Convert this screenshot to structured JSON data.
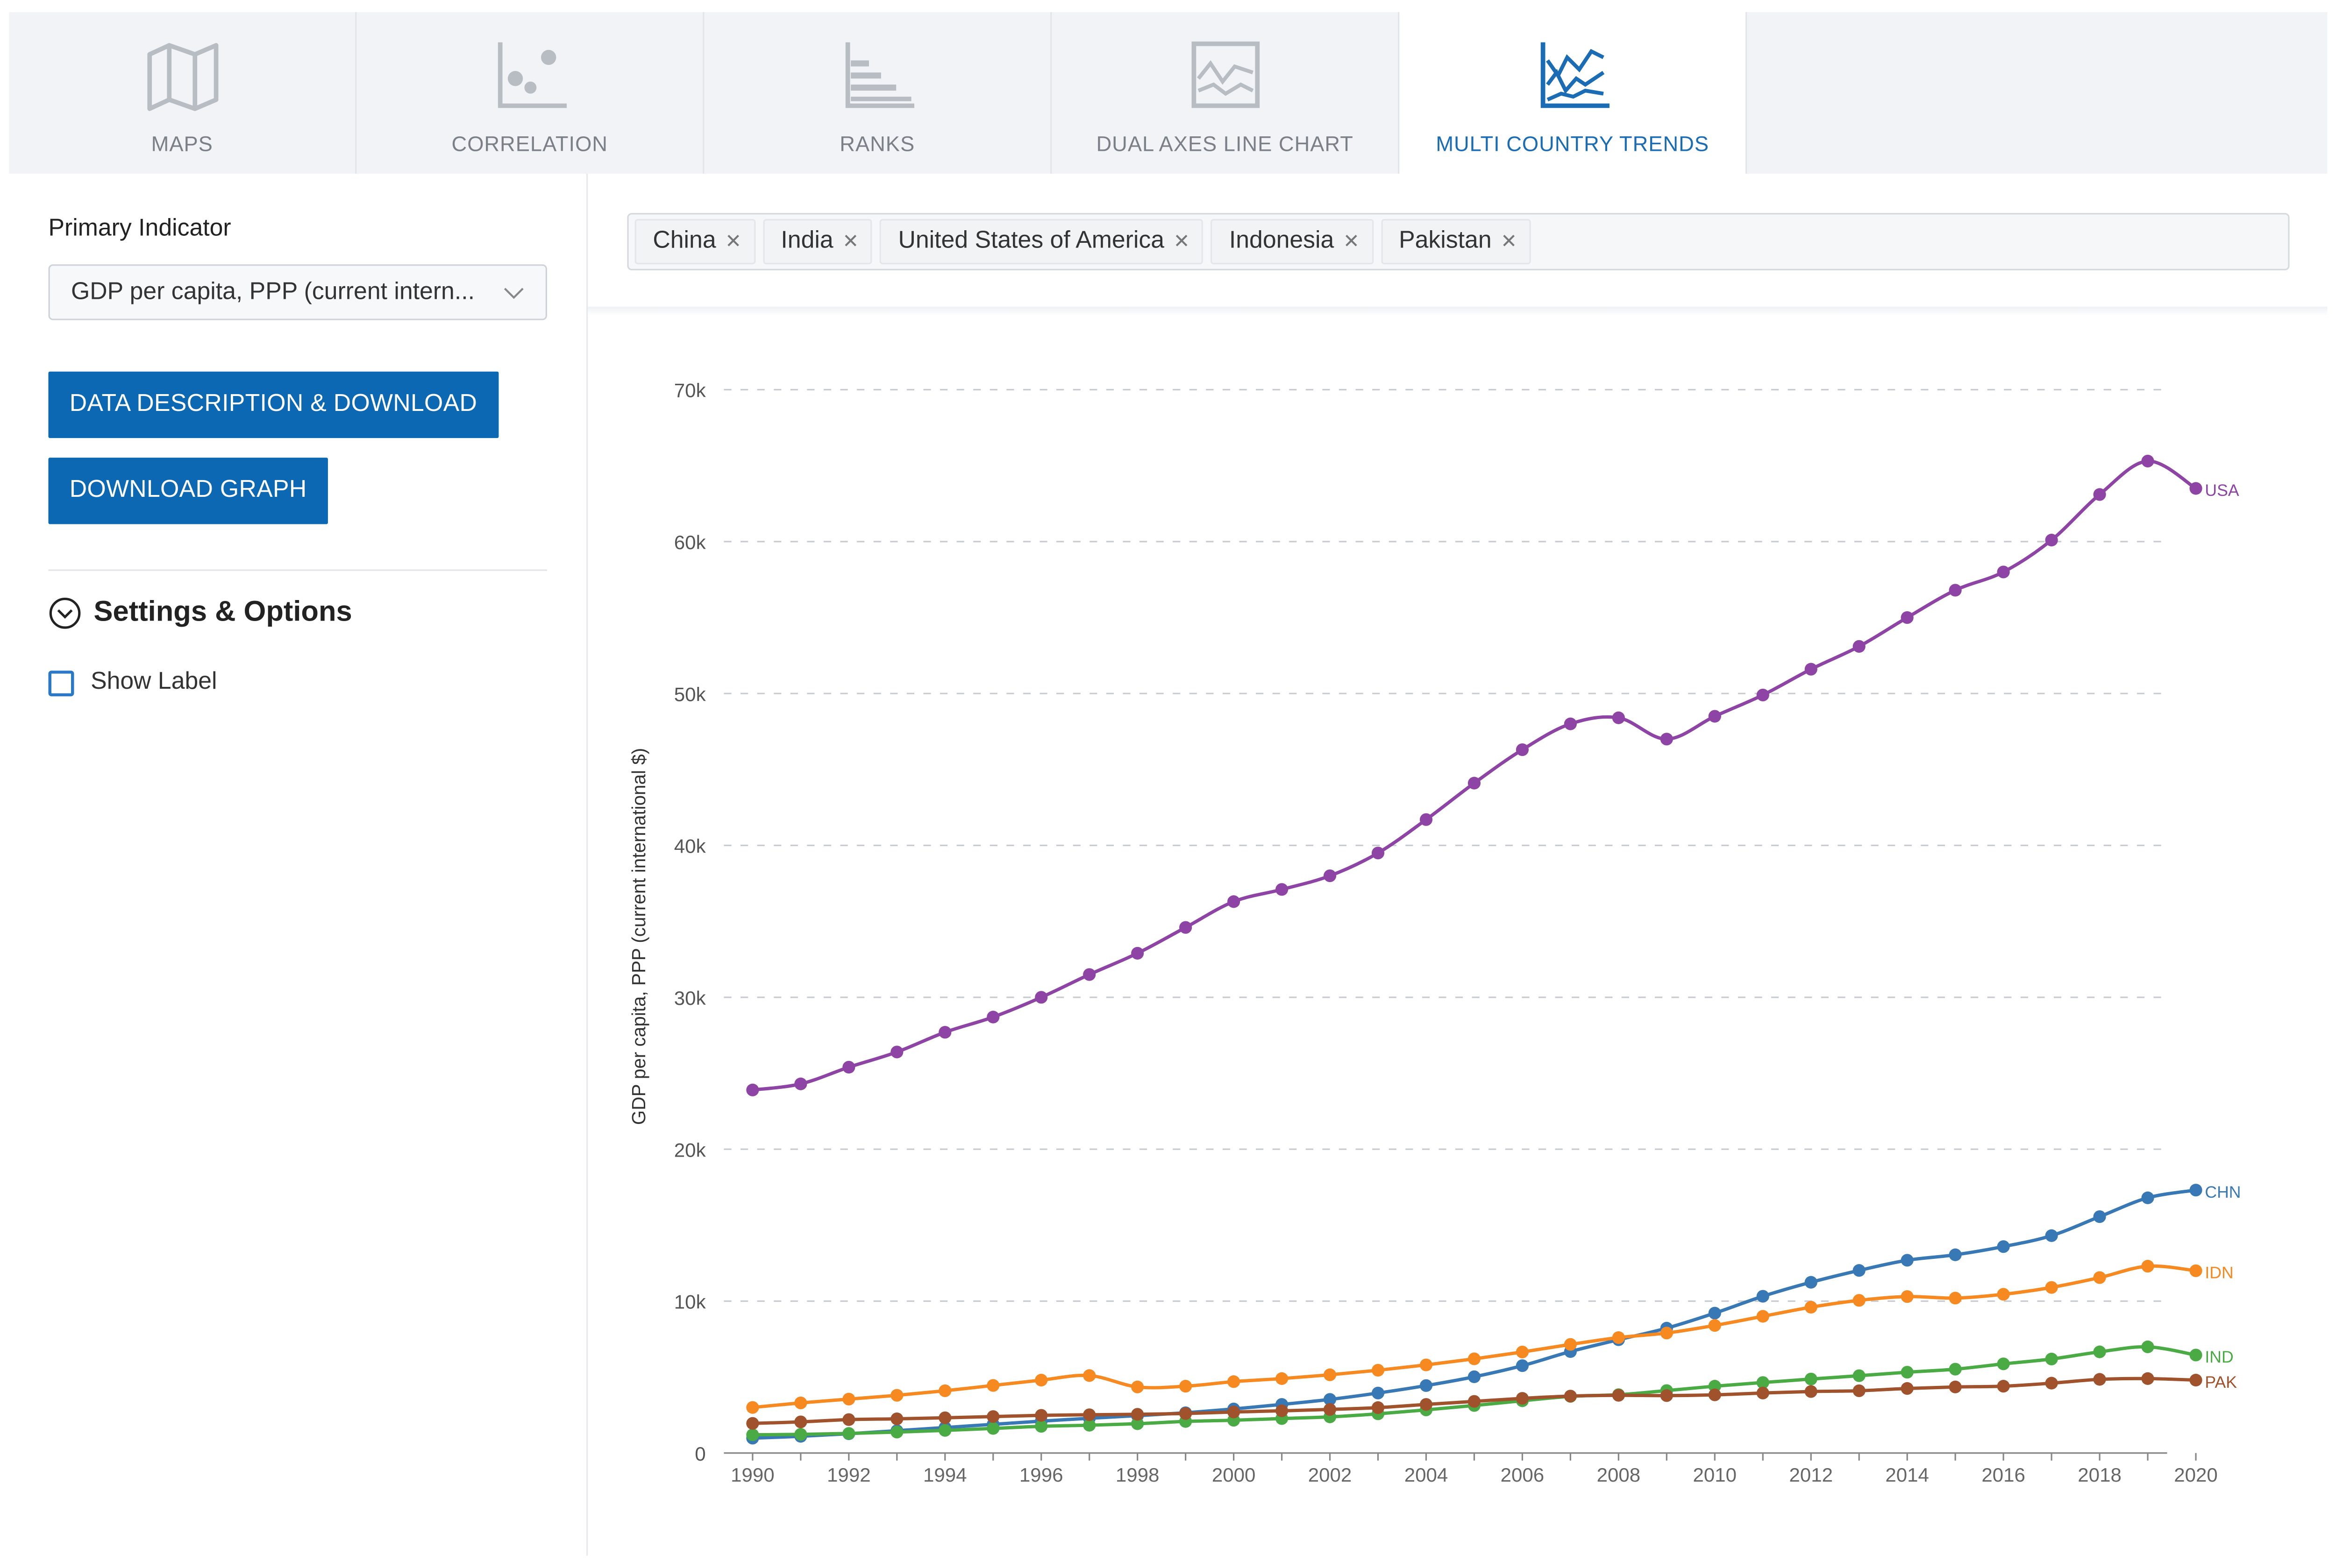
{
  "tabs": [
    {
      "label": "MAPS",
      "icon": "map-icon",
      "active": false
    },
    {
      "label": "CORRELATION",
      "icon": "scatter-icon",
      "active": false
    },
    {
      "label": "RANKS",
      "icon": "ranks-bar-icon",
      "active": false
    },
    {
      "label": "DUAL AXES LINE CHART",
      "icon": "dual-axes-chart-icon",
      "active": false
    },
    {
      "label": "MULTI COUNTRY TRENDS",
      "icon": "multi-trend-chart-icon",
      "active": true
    }
  ],
  "sidebar": {
    "primary_indicator_label": "Primary Indicator",
    "primary_indicator_value": "GDP per capita, PPP (current intern...",
    "btn_description": "DATA DESCRIPTION & DOWNLOAD",
    "btn_download_graph": "DOWNLOAD GRAPH",
    "settings_title": "Settings & Options",
    "show_label": "Show Label",
    "show_label_checked": false
  },
  "countries": [
    "China",
    "India",
    "United States of America",
    "Indonesia",
    "Pakistan"
  ],
  "colors": {
    "accent": "#0d68b3",
    "active_tab": "#1a6db5"
  },
  "chart_data": {
    "type": "line",
    "title": "",
    "xlabel": "",
    "ylabel": "GDP per capita, PPP (current international $)",
    "x": [
      1990,
      1991,
      1992,
      1993,
      1994,
      1995,
      1996,
      1997,
      1998,
      1999,
      2000,
      2001,
      2002,
      2003,
      2004,
      2005,
      2006,
      2007,
      2008,
      2009,
      2010,
      2011,
      2012,
      2013,
      2014,
      2015,
      2016,
      2017,
      2018,
      2019,
      2020
    ],
    "xticks": [
      1990,
      1992,
      1994,
      1996,
      1998,
      2000,
      2002,
      2004,
      2006,
      2008,
      2010,
      2012,
      2014,
      2016,
      2018,
      2020
    ],
    "yticks": [
      0,
      10000,
      20000,
      30000,
      40000,
      50000,
      60000,
      70000
    ],
    "ytick_labels": [
      "0",
      "10k",
      "20k",
      "30k",
      "40k",
      "50k",
      "60k",
      "70k"
    ],
    "ylim": [
      0,
      70000
    ],
    "xlim": [
      1990,
      2020
    ],
    "grid": true,
    "series": [
      {
        "name": "USA",
        "color": "#8e44a4",
        "values": [
          23900,
          24300,
          25400,
          26400,
          27700,
          28700,
          30000,
          31500,
          32900,
          34600,
          36300,
          37100,
          38000,
          39500,
          41700,
          44100,
          46300,
          48000,
          48400,
          47000,
          48500,
          49900,
          51600,
          53100,
          55000,
          56800,
          58000,
          60100,
          63100,
          65300,
          63500
        ]
      },
      {
        "name": "CHN",
        "color": "#3778b5",
        "values": [
          980,
          1100,
          1270,
          1470,
          1680,
          1890,
          2100,
          2290,
          2460,
          2650,
          2900,
          3200,
          3530,
          3950,
          4440,
          5020,
          5750,
          6680,
          7460,
          8220,
          9210,
          10320,
          11240,
          12020,
          12690,
          13050,
          13590,
          14310,
          15560,
          16800,
          17310
        ]
      },
      {
        "name": "IDN",
        "color": "#f6891f",
        "values": [
          3000,
          3300,
          3550,
          3800,
          4100,
          4450,
          4800,
          5100,
          4350,
          4400,
          4700,
          4900,
          5150,
          5450,
          5800,
          6200,
          6650,
          7150,
          7600,
          7900,
          8400,
          9000,
          9600,
          10050,
          10300,
          10200,
          10450,
          10900,
          11550,
          12300,
          12000
        ]
      },
      {
        "name": "IND",
        "color": "#4aab45",
        "values": [
          1200,
          1230,
          1290,
          1380,
          1490,
          1620,
          1760,
          1830,
          1930,
          2080,
          2160,
          2270,
          2380,
          2580,
          2840,
          3130,
          3440,
          3730,
          3840,
          4110,
          4400,
          4640,
          4870,
          5090,
          5320,
          5520,
          5870,
          6190,
          6660,
          6990,
          6450
        ]
      },
      {
        "name": "PAK",
        "color": "#a0522d",
        "values": [
          1950,
          2050,
          2200,
          2250,
          2320,
          2400,
          2480,
          2520,
          2550,
          2600,
          2700,
          2780,
          2870,
          2990,
          3200,
          3400,
          3600,
          3750,
          3800,
          3780,
          3830,
          3950,
          4050,
          4100,
          4250,
          4350,
          4400,
          4600,
          4850,
          4900,
          4800
        ]
      }
    ]
  }
}
